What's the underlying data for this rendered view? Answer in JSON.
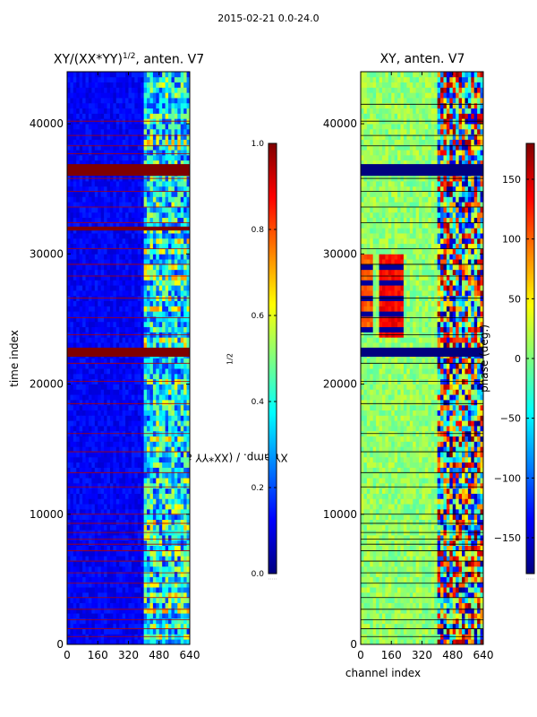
{
  "figure": {
    "suptitle": "2015-02-21 0.0-24.0",
    "ylabel_left": "time index",
    "xlabel_right": "channel index"
  },
  "colors": {
    "jet": [
      "#00007f",
      "#0000ff",
      "#007fff",
      "#00ffff",
      "#7fff7f",
      "#ffff00",
      "#ff7f00",
      "#ff0000",
      "#7f0000"
    ],
    "grid_line_amp": "#b00000",
    "grid_line_phase": "#000000"
  },
  "chart_data": [
    {
      "type": "heatmap",
      "title_base": "XY/(XX*YY)",
      "title_exp": "1/2",
      "title_suffix": ", anten. V7",
      "xlabel": "",
      "ylabel": "time index",
      "xlim": [
        0,
        640
      ],
      "ylim": [
        0,
        44000
      ],
      "xticks": [
        0,
        160,
        320,
        480,
        640
      ],
      "yticks": [
        0,
        10000,
        20000,
        30000,
        40000
      ],
      "colorbar": {
        "label_base": "XY amp. / (XX*YY amp)",
        "label_exp": "1/2",
        "range": [
          0.0,
          1.0
        ],
        "ticks": [
          "0.0",
          "0.2",
          "0.4",
          "0.6",
          "0.8",
          "1.0"
        ]
      },
      "value_range": [
        0,
        1
      ],
      "bands": [
        {
          "x": [
            0,
            400
          ],
          "value": 0.12
        },
        {
          "x": [
            400,
            440
          ],
          "value": 0.55
        },
        {
          "x": [
            440,
            640
          ],
          "value": 0.35
        }
      ],
      "saturated_rows": [
        {
          "y": [
            36000,
            36900
          ],
          "value": 1.0
        },
        {
          "y": [
            22100,
            22800
          ],
          "value": 1.0
        },
        {
          "y": [
            31800,
            32100
          ],
          "value": 1.0
        }
      ],
      "flag_rows": [
        40200,
        39100,
        38300,
        37700,
        35800,
        34800,
        33600,
        32400,
        30400,
        29200,
        28300,
        26600,
        25100,
        23800,
        21600,
        20200,
        18500,
        16200,
        14800,
        13200,
        12100,
        10000,
        9300,
        8600,
        8100,
        7700,
        7200,
        6400,
        5500,
        4700,
        3600,
        2700,
        1900,
        1200,
        600
      ]
    },
    {
      "type": "heatmap",
      "title": "XY, anten. V7",
      "xlabel": "channel index",
      "ylabel": "",
      "xlim": [
        0,
        640
      ],
      "ylim": [
        0,
        44000
      ],
      "xticks": [
        0,
        160,
        320,
        480,
        640
      ],
      "yticks": [
        0,
        10000,
        20000,
        30000,
        40000
      ],
      "colorbar": {
        "label": "phase (deg.)",
        "range": [
          -180,
          180
        ],
        "ticks": [
          "−150",
          "−100",
          "−50",
          "0",
          "50",
          "100",
          "150"
        ]
      },
      "value_range": [
        -180,
        180
      ],
      "bands": [
        {
          "x": [
            0,
            400
          ],
          "value": 0
        },
        {
          "x": [
            400,
            640
          ],
          "value": 10
        }
      ],
      "hot_blocks": [
        {
          "x": [
            100,
            230
          ],
          "y": [
            23800,
            30000
          ],
          "value": 150
        },
        {
          "x": [
            0,
            60
          ],
          "y": [
            24000,
            30000
          ],
          "value": 120
        }
      ],
      "saturated_rows": [
        {
          "y": [
            36000,
            36900
          ],
          "value": -180
        },
        {
          "y": [
            22100,
            22800
          ],
          "value": -180
        }
      ],
      "flag_rows": [
        41500,
        40200,
        39100,
        38300,
        35800,
        34800,
        33600,
        32400,
        30400,
        29200,
        28300,
        26600,
        25100,
        23800,
        21600,
        20200,
        18500,
        16200,
        14800,
        13200,
        12100,
        10000,
        9300,
        8600,
        8100,
        7700,
        7200,
        6400,
        5500,
        4700,
        3600,
        2700,
        1900,
        1200,
        600
      ]
    }
  ]
}
